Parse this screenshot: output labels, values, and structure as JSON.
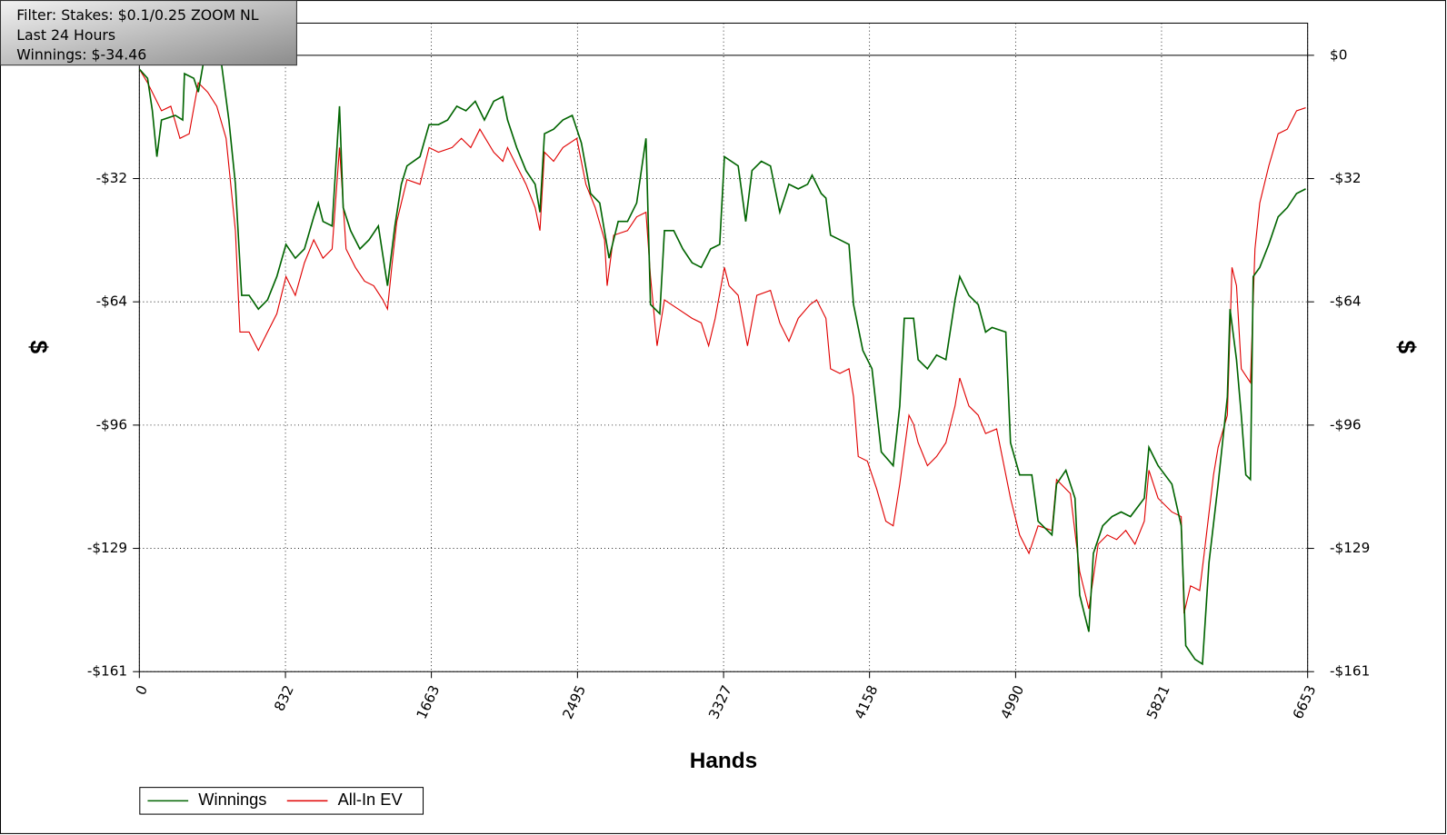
{
  "chart_data": {
    "type": "line",
    "annotations": [
      "Filter: Stakes: $0.1/0.25 ZOOM NL",
      "Last  24 Hours",
      "Winnings: $-34.46"
    ],
    "xlabel": "Hands",
    "ylabel": "$",
    "xlim": [
      0,
      6653
    ],
    "xticks": [
      0,
      832,
      1663,
      2495,
      3327,
      4158,
      4990,
      5821,
      6653
    ],
    "ylim": [
      -161,
      8.4
    ],
    "yticks": [
      {
        "value": 0,
        "label": "$0"
      },
      {
        "value": -32.2,
        "label": "-$32"
      },
      {
        "value": -64.4,
        "label": "-$64"
      },
      {
        "value": -96.6,
        "label": "-$96"
      },
      {
        "value": -128.8,
        "label": "-$129"
      },
      {
        "value": -161,
        "label": "-$161"
      }
    ],
    "grid": true,
    "legend": "bottom-left",
    "series": [
      {
        "name": "Winnings",
        "color": "#006400",
        "x": [
          0,
          47,
          74,
          100,
          126,
          205,
          247,
          257,
          310,
          336,
          363,
          468,
          510,
          547,
          583,
          625,
          678,
          730,
          783,
          835,
          888,
          940,
          993,
          1019,
          1046,
          1098,
          1140,
          1161,
          1203,
          1256,
          1308,
          1361,
          1413,
          1455,
          1492,
          1524,
          1598,
          1650,
          1703,
          1755,
          1808,
          1860,
          1913,
          1965,
          2018,
          2070,
          2097,
          2149,
          2202,
          2254,
          2281,
          2307,
          2359,
          2412,
          2465,
          2517,
          2570,
          2622,
          2675,
          2727,
          2780,
          2832,
          2885,
          2911,
          2964,
          2990,
          3043,
          3095,
          3148,
          3200,
          3253,
          3305,
          3332,
          3410,
          3453,
          3489,
          3542,
          3594,
          3647,
          3699,
          3752,
          3805,
          3831,
          3883,
          3910,
          3936,
          3989,
          4041,
          4067,
          4120,
          4172,
          4225,
          4293,
          4330,
          4356,
          4409,
          4435,
          4488,
          4540,
          4593,
          4645,
          4672,
          4724,
          4777,
          4819,
          4856,
          4934,
          4961,
          5013,
          5082,
          5118,
          5197,
          5223,
          5276,
          5328,
          5355,
          5407,
          5433,
          5486,
          5539,
          5591,
          5644,
          5723,
          5749,
          5801,
          5880,
          5933,
          5959,
          6012,
          6054,
          6091,
          6143,
          6196,
          6211,
          6248,
          6275,
          6301,
          6327,
          6343,
          6380,
          6432,
          6485,
          6537,
          6590,
          6642
        ],
        "values": [
          -3.6,
          -6.0,
          -14.5,
          -26.5,
          -16.9,
          -15.7,
          -16.9,
          -4.8,
          -6.0,
          -9.6,
          -2.4,
          -2.4,
          -16.9,
          -33.7,
          -62.7,
          -62.7,
          -66.3,
          -63.9,
          -57.8,
          -49.4,
          -53.0,
          -50.6,
          -42.2,
          -38.6,
          -43.4,
          -44.6,
          -13.3,
          -39.8,
          -45.8,
          -50.6,
          -48.2,
          -44.6,
          -60.2,
          -44.6,
          -33.7,
          -28.9,
          -26.5,
          -18.1,
          -18.1,
          -16.9,
          -13.3,
          -14.5,
          -12.0,
          -16.9,
          -12.0,
          -10.8,
          -16.9,
          -24.1,
          -30.1,
          -33.7,
          -41.0,
          -20.5,
          -19.3,
          -16.9,
          -15.7,
          -22.9,
          -36.1,
          -38.6,
          -53.0,
          -43.4,
          -43.4,
          -38.6,
          -21.7,
          -65.1,
          -67.5,
          -45.8,
          -45.8,
          -50.6,
          -54.2,
          -55.4,
          -50.6,
          -49.4,
          -26.5,
          -28.9,
          -43.4,
          -30.1,
          -27.7,
          -28.9,
          -41.0,
          -33.7,
          -34.9,
          -33.7,
          -31.3,
          -36.1,
          -37.3,
          -47.0,
          -48.2,
          -49.4,
          -65.1,
          -77.1,
          -81.9,
          -103.6,
          -107.2,
          -91.6,
          -68.7,
          -68.7,
          -79.5,
          -81.9,
          -78.3,
          -79.5,
          -63.9,
          -57.8,
          -62.7,
          -65.1,
          -72.3,
          -71.1,
          -72.3,
          -101.2,
          -109.6,
          -109.6,
          -121.7,
          -125.3,
          -112.0,
          -108.4,
          -115.7,
          -141.0,
          -150.6,
          -130.1,
          -122.9,
          -120.5,
          -119.3,
          -120.5,
          -115.7,
          -102.4,
          -107.2,
          -112.0,
          -122.9,
          -154.2,
          -157.8,
          -159.0,
          -132.5,
          -112.0,
          -89.2,
          -66.3,
          -79.5,
          -94.0,
          -109.6,
          -110.8,
          -57.8,
          -55.4,
          -49.4,
          -42.2,
          -39.8,
          -36.1,
          -34.9
        ]
      },
      {
        "name": "All-In EV",
        "color": "#e00000",
        "x": [
          0,
          47,
          126,
          179,
          231,
          284,
          336,
          389,
          441,
          494,
          547,
          573,
          625,
          678,
          730,
          783,
          835,
          888,
          940,
          993,
          1046,
          1098,
          1140,
          1177,
          1230,
          1282,
          1335,
          1387,
          1413,
          1440,
          1466,
          1524,
          1598,
          1650,
          1703,
          1781,
          1834,
          1887,
          1939,
          2018,
          2070,
          2097,
          2149,
          2202,
          2254,
          2281,
          2307,
          2359,
          2412,
          2491,
          2543,
          2596,
          2649,
          2664,
          2701,
          2780,
          2832,
          2885,
          2911,
          2948,
          2990,
          3069,
          3148,
          3200,
          3242,
          3279,
          3332,
          3358,
          3410,
          3463,
          3516,
          3594,
          3647,
          3699,
          3752,
          3820,
          3857,
          3910,
          3936,
          3989,
          4041,
          4067,
          4094,
          4146,
          4199,
          4251,
          4293,
          4330,
          4383,
          4409,
          4435,
          4488,
          4540,
          4593,
          4645,
          4672,
          4724,
          4777,
          4819,
          4882,
          4961,
          5013,
          5066,
          5118,
          5197,
          5223,
          5302,
          5355,
          5407,
          5460,
          5512,
          5565,
          5617,
          5670,
          5723,
          5749,
          5801,
          5880,
          5933,
          5949,
          5986,
          6038,
          6064,
          6117,
          6143,
          6196,
          6222,
          6248,
          6275,
          6327,
          6353,
          6380,
          6432,
          6485,
          6537,
          6590,
          6642
        ],
        "values": [
          -3.6,
          -7.2,
          -14.5,
          -13.3,
          -21.7,
          -20.5,
          -7.2,
          -9.6,
          -13.3,
          -21.7,
          -45.8,
          -72.3,
          -72.3,
          -77.1,
          -72.3,
          -67.5,
          -57.8,
          -62.7,
          -54.2,
          -48.2,
          -53.0,
          -50.6,
          -24.1,
          -50.6,
          -55.4,
          -59.0,
          -60.2,
          -63.9,
          -66.3,
          -54.2,
          -43.4,
          -32.5,
          -33.7,
          -24.1,
          -25.3,
          -24.1,
          -21.7,
          -24.1,
          -19.3,
          -25.3,
          -27.7,
          -24.1,
          -28.9,
          -33.7,
          -39.8,
          -45.8,
          -25.3,
          -27.7,
          -24.1,
          -21.7,
          -33.7,
          -39.8,
          -48.2,
          -60.2,
          -47.0,
          -45.8,
          -42.2,
          -41.0,
          -57.8,
          -75.9,
          -63.9,
          -66.3,
          -68.7,
          -69.9,
          -75.9,
          -68.7,
          -55.4,
          -60.2,
          -62.7,
          -75.9,
          -62.7,
          -61.4,
          -69.9,
          -74.7,
          -68.7,
          -65.1,
          -63.9,
          -68.7,
          -81.9,
          -83.1,
          -81.9,
          -89.2,
          -104.8,
          -106.0,
          -113.3,
          -121.7,
          -122.9,
          -112.0,
          -94.0,
          -96.4,
          -101.2,
          -107.2,
          -104.8,
          -101.2,
          -91.6,
          -84.3,
          -91.6,
          -94.0,
          -98.8,
          -97.6,
          -115.7,
          -125.3,
          -130.1,
          -122.9,
          -124.1,
          -110.8,
          -114.5,
          -134.9,
          -144.6,
          -127.7,
          -125.3,
          -126.5,
          -124.1,
          -127.7,
          -121.7,
          -108.4,
          -115.7,
          -119.3,
          -120.5,
          -145.8,
          -138.6,
          -139.8,
          -130.1,
          -109.6,
          -102.4,
          -94.0,
          -55.4,
          -60.2,
          -81.9,
          -85.5,
          -50.6,
          -38.6,
          -28.9,
          -20.5,
          -19.3,
          -14.5,
          -13.7
        ]
      }
    ]
  }
}
